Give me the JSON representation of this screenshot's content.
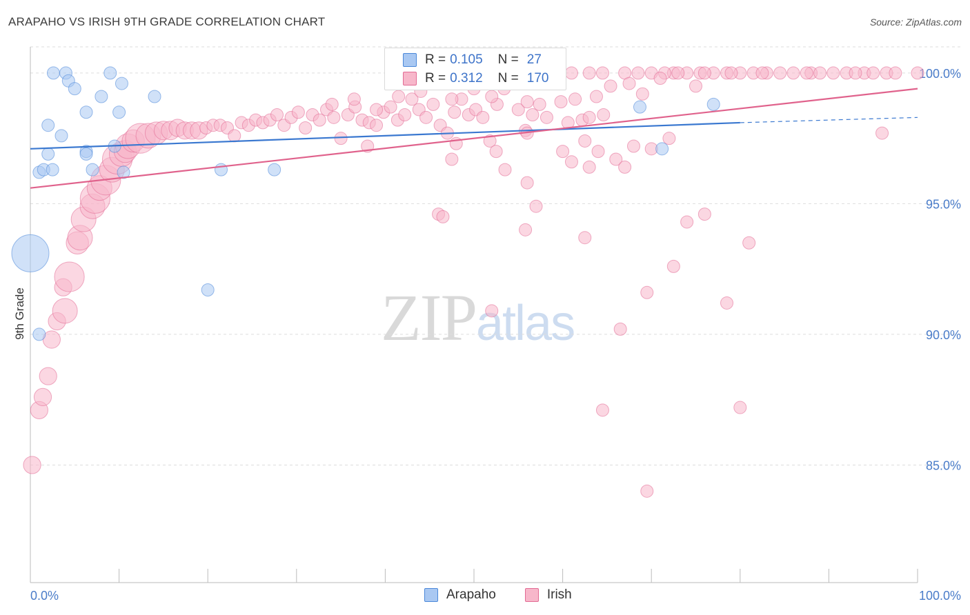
{
  "title": "ARAPAHO VS IRISH 9TH GRADE CORRELATION CHART",
  "source": "Source: ZipAtlas.com",
  "watermark": {
    "zip": "ZIP",
    "atlas": "atlas"
  },
  "legend": {
    "rows": [
      {
        "r_label": "R =",
        "r_value": "0.105",
        "n_label": "N =",
        "n_value": "27",
        "color": "#a9c8f2"
      },
      {
        "r_label": "R =",
        "r_value": "0.312",
        "n_label": "N =",
        "n_value": "170",
        "color": "#f7b7ca"
      }
    ]
  },
  "chart_data": {
    "type": "scatter",
    "title": "ARAPAHO VS IRISH 9TH GRADE CORRELATION CHART",
    "xlabel": "",
    "ylabel": "9th Grade",
    "xlim": [
      0,
      100
    ],
    "ylim": [
      80.5,
      101.0
    ],
    "x_tick_labels": [
      "0.0%",
      "100.0%"
    ],
    "y_ticks": [
      85,
      90,
      95,
      100
    ],
    "y_tick_labels": [
      "85.0%",
      "90.0%",
      "95.0%",
      "100.0%"
    ],
    "grid": true,
    "legend_position": "bottom",
    "series": [
      {
        "name": "Arapaho",
        "color": "#4a87d9",
        "fill": "#a9c8f2",
        "trend": {
          "x": [
            0,
            80
          ],
          "y": [
            97.1,
            98.1
          ],
          "dashed_to": [
            100,
            98.3
          ]
        },
        "points": [
          [
            0,
            93.1,
            3
          ],
          [
            1,
            96.2,
            1
          ],
          [
            1.5,
            96.3,
            1
          ],
          [
            2.5,
            96.3,
            1
          ],
          [
            2,
            96.9,
            1
          ],
          [
            3.5,
            97.6,
            1
          ],
          [
            2,
            98.0,
            1
          ],
          [
            6.3,
            97.0,
            1
          ],
          [
            6.3,
            96.9,
            1
          ],
          [
            7,
            96.3,
            1
          ],
          [
            2.6,
            100.0,
            1
          ],
          [
            4,
            100.0,
            1
          ],
          [
            4.3,
            99.7,
            1
          ],
          [
            5,
            99.4,
            1
          ],
          [
            6.3,
            98.5,
            1
          ],
          [
            8,
            99.1,
            1
          ],
          [
            9,
            100.0,
            1
          ],
          [
            10,
            98.5,
            1
          ],
          [
            10.3,
            99.6,
            1
          ],
          [
            14,
            99.1,
            1
          ],
          [
            10.5,
            96.2,
            1
          ],
          [
            9.5,
            97.2,
            1
          ],
          [
            21.5,
            96.3,
            1
          ],
          [
            27.5,
            96.3,
            1
          ],
          [
            20,
            91.7,
            1
          ],
          [
            68.7,
            98.7,
            1
          ],
          [
            71.2,
            97.1,
            1
          ],
          [
            77,
            98.8,
            1
          ],
          [
            1,
            90.0,
            1
          ]
        ]
      },
      {
        "name": "Irish",
        "color": "#e26a93",
        "fill": "#f7b7ca",
        "trend": {
          "x": [
            0,
            100
          ],
          "y": [
            95.6,
            99.4
          ]
        },
        "points": [
          [
            0.2,
            85.0,
            1.4
          ],
          [
            1,
            87.1,
            1.4
          ],
          [
            1.4,
            87.6,
            1.4
          ],
          [
            2,
            88.4,
            1.4
          ],
          [
            2.4,
            89.8,
            1.4
          ],
          [
            3,
            90.5,
            1.4
          ],
          [
            3.7,
            91.8,
            1.4
          ],
          [
            3.9,
            90.9,
            2
          ],
          [
            4.4,
            92.2,
            2.4
          ],
          [
            5.3,
            93.5,
            1.8
          ],
          [
            5.6,
            93.7,
            2
          ],
          [
            6,
            94.4,
            2
          ],
          [
            7,
            94.9,
            2
          ],
          [
            7.3,
            95.2,
            2.4
          ],
          [
            7.8,
            95.6,
            2
          ],
          [
            8.5,
            95.9,
            2.4
          ],
          [
            9.2,
            96.3,
            2
          ],
          [
            9.8,
            96.7,
            2.4
          ],
          [
            10.3,
            96.9,
            2
          ],
          [
            10.7,
            97.0,
            1.8
          ],
          [
            11,
            97.2,
            2
          ],
          [
            11.6,
            97.4,
            1.8
          ],
          [
            12.4,
            97.5,
            2.4
          ],
          [
            13.3,
            97.6,
            2
          ],
          [
            14.2,
            97.7,
            1.8
          ],
          [
            15,
            97.8,
            1.5
          ],
          [
            15.8,
            97.8,
            1.5
          ],
          [
            16.6,
            97.9,
            1.4
          ],
          [
            17.4,
            97.8,
            1.4
          ],
          [
            18.2,
            97.8,
            1.4
          ],
          [
            19,
            97.8,
            1.4
          ],
          [
            19.8,
            97.9,
            1
          ],
          [
            20.6,
            98.0,
            1
          ],
          [
            21.4,
            98.0,
            1
          ],
          [
            22.2,
            97.9,
            1
          ],
          [
            23,
            97.6,
            1
          ],
          [
            23.8,
            98.1,
            1
          ],
          [
            24.6,
            98.0,
            1
          ],
          [
            25.4,
            98.2,
            1
          ],
          [
            26.2,
            98.1,
            1
          ],
          [
            27,
            98.2,
            1
          ],
          [
            27.8,
            98.4,
            1
          ],
          [
            28.6,
            98.0,
            1
          ],
          [
            29.4,
            98.3,
            1
          ],
          [
            30.2,
            98.5,
            1
          ],
          [
            31,
            97.9,
            1
          ],
          [
            31.8,
            98.4,
            1
          ],
          [
            32.6,
            98.2,
            1
          ],
          [
            33.4,
            98.6,
            1
          ],
          [
            34.2,
            98.3,
            1
          ],
          [
            35,
            97.5,
            1
          ],
          [
            35.8,
            98.4,
            1
          ],
          [
            36.6,
            98.7,
            1
          ],
          [
            37.4,
            98.2,
            1
          ],
          [
            38.2,
            98.1,
            1
          ],
          [
            39,
            98.0,
            1
          ],
          [
            39.8,
            98.5,
            1
          ],
          [
            40.6,
            98.7,
            1
          ],
          [
            41.4,
            98.2,
            1
          ],
          [
            42.2,
            98.4,
            1
          ],
          [
            43,
            99.0,
            1
          ],
          [
            43.8,
            98.6,
            1
          ],
          [
            44.6,
            98.3,
            1
          ],
          [
            45.4,
            98.8,
            1
          ],
          [
            46.2,
            98.0,
            1
          ],
          [
            47,
            97.7,
            1
          ],
          [
            47.8,
            98.5,
            1
          ],
          [
            48.6,
            99.0,
            1
          ],
          [
            49.4,
            98.4,
            1
          ],
          [
            50.2,
            98.6,
            1
          ],
          [
            51,
            98.3,
            1
          ],
          [
            51.8,
            97.4,
            1
          ],
          [
            52.6,
            98.8,
            1
          ],
          [
            53.4,
            99.4,
            1
          ],
          [
            54.2,
            99.8,
            1
          ],
          [
            55,
            98.6,
            1
          ],
          [
            55.8,
            97.8,
            1
          ],
          [
            56.6,
            98.4,
            1
          ],
          [
            57.4,
            98.8,
            1
          ],
          [
            58.2,
            98.3,
            1
          ],
          [
            59,
            99.6,
            1
          ],
          [
            59.8,
            98.9,
            1
          ],
          [
            60.6,
            98.1,
            1
          ],
          [
            61.4,
            99.0,
            1
          ],
          [
            62.2,
            98.2,
            1
          ],
          [
            63,
            98.3,
            1
          ],
          [
            63.8,
            99.1,
            1
          ],
          [
            64.6,
            98.4,
            1
          ],
          [
            65.4,
            99.5,
            1
          ],
          [
            58,
            100.0,
            1
          ],
          [
            61,
            100.0,
            1
          ],
          [
            63,
            100.0,
            1
          ],
          [
            64.5,
            100.0,
            1
          ],
          [
            67,
            100.0,
            1
          ],
          [
            68.5,
            100.0,
            1
          ],
          [
            70,
            100.0,
            1
          ],
          [
            72.5,
            100.0,
            1
          ],
          [
            74,
            100.0,
            1
          ],
          [
            75.5,
            100.0,
            1
          ],
          [
            77,
            100.0,
            1
          ],
          [
            78.5,
            100.0,
            1
          ],
          [
            80,
            100.0,
            1
          ],
          [
            81.5,
            100.0,
            1
          ],
          [
            83,
            100.0,
            1
          ],
          [
            84.5,
            100.0,
            1
          ],
          [
            86,
            100.0,
            1
          ],
          [
            88,
            100.0,
            1
          ],
          [
            90.5,
            100.0,
            1
          ],
          [
            92,
            100.0,
            1
          ],
          [
            94,
            100.0,
            1
          ],
          [
            96.5,
            100.0,
            1
          ],
          [
            97.5,
            100.0,
            1
          ],
          [
            100,
            100.0,
            1
          ],
          [
            71.5,
            100.0,
            1
          ],
          [
            73,
            100.0,
            1
          ],
          [
            76,
            100.0,
            1
          ],
          [
            79,
            100.0,
            1
          ],
          [
            82.5,
            100.0,
            1
          ],
          [
            87.5,
            100.0,
            1
          ],
          [
            89,
            100.0,
            1
          ],
          [
            93,
            100.0,
            1
          ],
          [
            95,
            100.0,
            1
          ],
          [
            67.5,
            99.6,
            1
          ],
          [
            71,
            99.8,
            1
          ],
          [
            75,
            99.5,
            1
          ],
          [
            69,
            99.2,
            1
          ],
          [
            41.5,
            99.1,
            1
          ],
          [
            44,
            99.3,
            1
          ],
          [
            47.5,
            99.0,
            1
          ],
          [
            50,
            99.4,
            1
          ],
          [
            52,
            99.1,
            1
          ],
          [
            56,
            98.9,
            1
          ],
          [
            34,
            98.8,
            1
          ],
          [
            36.5,
            99.0,
            1
          ],
          [
            39,
            98.6,
            1
          ],
          [
            38,
            97.2,
            1
          ],
          [
            48,
            97.3,
            1
          ],
          [
            52.5,
            97.0,
            1
          ],
          [
            56,
            97.7,
            1
          ],
          [
            60,
            97.0,
            1
          ],
          [
            62.5,
            97.4,
            1
          ],
          [
            64,
            97.0,
            1
          ],
          [
            66,
            96.7,
            1
          ],
          [
            68,
            97.2,
            1
          ],
          [
            70,
            97.1,
            1
          ],
          [
            72,
            97.5,
            1
          ],
          [
            53.5,
            96.3,
            1
          ],
          [
            56,
            95.8,
            1
          ],
          [
            57,
            94.9,
            1
          ],
          [
            47.5,
            96.7,
            1
          ],
          [
            61,
            96.6,
            1
          ],
          [
            63,
            96.4,
            1
          ],
          [
            67,
            96.4,
            1
          ],
          [
            46,
            94.6,
            1
          ],
          [
            62.5,
            93.7,
            1
          ],
          [
            74,
            94.3,
            1
          ],
          [
            76,
            94.6,
            1
          ],
          [
            81,
            93.5,
            1
          ],
          [
            72.5,
            92.6,
            1
          ],
          [
            69.5,
            91.6,
            1
          ],
          [
            78.5,
            91.2,
            1
          ],
          [
            52,
            90.9,
            1
          ],
          [
            66.5,
            90.2,
            1
          ],
          [
            64.5,
            87.1,
            1
          ],
          [
            80,
            87.2,
            1
          ],
          [
            69.5,
            84.0,
            1
          ],
          [
            96,
            97.7,
            1
          ],
          [
            46.5,
            94.5,
            1
          ],
          [
            55.8,
            94.0,
            1
          ]
        ]
      }
    ]
  }
}
